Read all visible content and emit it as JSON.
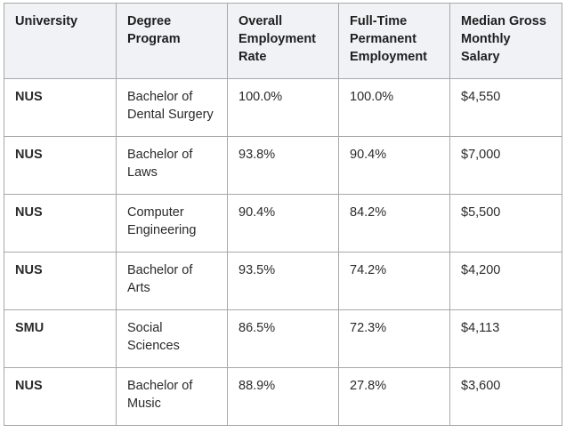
{
  "table": {
    "headers": [
      "University",
      "Degree Program",
      "Overall Employment Rate",
      "Full-Time Permanent Employment",
      "Median Gross Monthly Salary"
    ],
    "rows": [
      [
        "NUS",
        "Bachelor of Dental Surgery",
        "100.0%",
        "100.0%",
        "$4,550"
      ],
      [
        "NUS",
        "Bachelor of Laws",
        "93.8%",
        "90.4%",
        "$7,000"
      ],
      [
        "NUS",
        "Computer Engineering",
        "90.4%",
        "84.2%",
        "$5,500"
      ],
      [
        "NUS",
        "Bachelor of Arts",
        "93.5%",
        "74.2%",
        "$4,200"
      ],
      [
        "SMU",
        "Social Sciences",
        "86.5%",
        "72.3%",
        "$4,113"
      ],
      [
        "NUS",
        "Bachelor of Music",
        "88.9%",
        "27.8%",
        "$3,600"
      ]
    ]
  }
}
